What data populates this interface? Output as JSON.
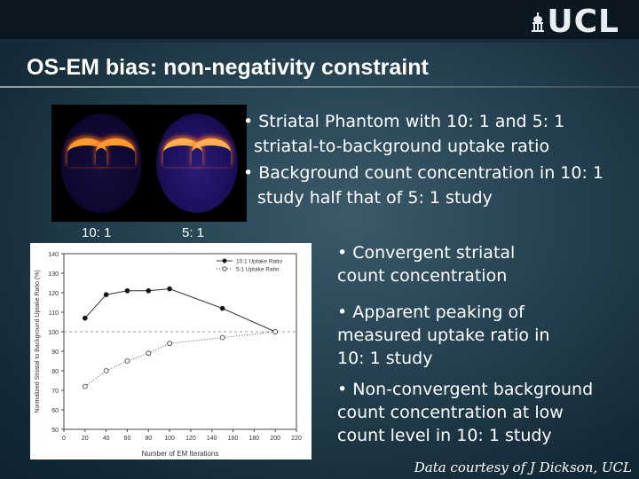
{
  "header": {
    "logo_text": "UCL"
  },
  "slide": {
    "title": "OS-EM bias: non-negativity constraint",
    "image_labels": [
      "10: 1",
      "5: 1"
    ],
    "bullets_top": [
      "• Striatal Phantom with 10: 1 and 5: 1",
      "striatal-to-background uptake ratio",
      "• Background count concentration in 10: 1",
      "study half that of 5: 1 study"
    ],
    "bullets_right": [
      "• Convergent striatal",
      "count concentration",
      "• Apparent peaking of",
      "measured uptake ratio in",
      "10: 1 study",
      "• Non-convergent background",
      "count concentration at low",
      "count level in 10: 1 study"
    ],
    "credit": "Data courtesy of J Dickson, UCL"
  },
  "chart_data": {
    "type": "scatter",
    "xlabel": "Number of EM Iterations",
    "ylabel": "Normalized Striatal to Background Uptake Ratio (%)",
    "xlim": [
      0,
      220
    ],
    "ylim": [
      50,
      140
    ],
    "xticks": [
      0,
      20,
      40,
      60,
      80,
      100,
      120,
      140,
      160,
      180,
      200,
      220
    ],
    "yticks": [
      50,
      60,
      70,
      80,
      90,
      100,
      110,
      120,
      130,
      140
    ],
    "legend_position": "top-right",
    "reference_line": 100,
    "series": [
      {
        "name": "10:1 Uptake Ratio",
        "style": "filled-solid",
        "x": [
          20,
          40,
          60,
          80,
          100,
          150,
          200
        ],
        "y": [
          107,
          119,
          121,
          121,
          122,
          112,
          100
        ]
      },
      {
        "name": "5:1 Uptake Ratio",
        "style": "open-dotted",
        "x": [
          20,
          40,
          60,
          80,
          100,
          150,
          200
        ],
        "y": [
          72,
          80,
          85,
          89,
          94,
          97,
          100
        ]
      }
    ]
  }
}
